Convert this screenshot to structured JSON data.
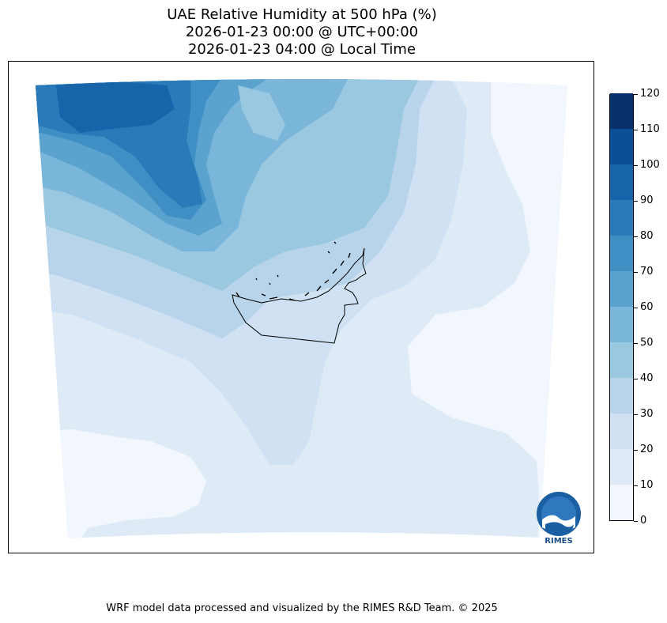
{
  "title": {
    "line1": "UAE Relative Humidity at 500 hPa (%)",
    "line2": "2026-01-23 00:00 @ UTC+00:00",
    "line3": "2026-01-23 04:00 @ Local Time"
  },
  "colorbar": {
    "min": 0,
    "max": 120,
    "levels": [
      0,
      10,
      20,
      30,
      40,
      50,
      60,
      70,
      80,
      90,
      100,
      110,
      120
    ],
    "tick_labels": [
      "0",
      "10",
      "20",
      "30",
      "40",
      "50",
      "60",
      "70",
      "80",
      "90",
      "100",
      "110",
      "120"
    ],
    "colors": [
      "#f1f7fd",
      "#deebf7",
      "#cfe1f2",
      "#b7d4ea",
      "#9ac8e0",
      "#7ab6d9",
      "#5aa3cf",
      "#3f8fc5",
      "#2a7ab9",
      "#1764ab",
      "#0a4f97",
      "#08306b"
    ]
  },
  "map": {
    "colormap": "Blues",
    "region": "UAE"
  },
  "logo": {
    "text": "RIMES"
  },
  "footer": "WRF model data processed and visualized by the RIMES R&D Team. © 2025"
}
